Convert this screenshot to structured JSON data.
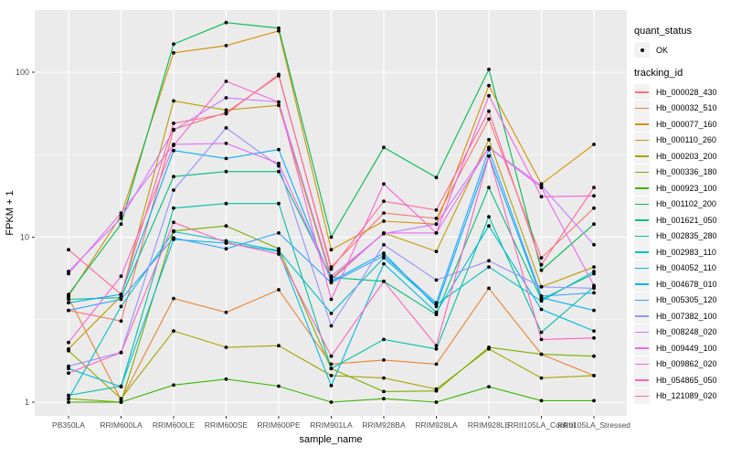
{
  "chart_data": {
    "type": "line",
    "title": "",
    "xlabel": "sample_name",
    "ylabel": "FPKM + 1",
    "y_scale": "log10",
    "y_ticks": [
      1,
      10,
      100
    ],
    "y_minor_ticks": [
      3.162,
      31.62
    ],
    "ylim": [
      0.82,
      240
    ],
    "grid": "on",
    "panel_background": "#EBEBEB",
    "grid_color": "#FFFFFF",
    "point_color": "#000000",
    "legend_position": "right",
    "categories": [
      "PB350LA",
      "RRIM600LA",
      "RRIM600LE",
      "RRIM600SE",
      "RRIM600PE",
      "RRIM901LA",
      "RRIM928BA",
      "RRIM928LA",
      "RRIM928LE",
      "RRII105LA_Control",
      "RRII105LA_Stressed"
    ],
    "series": [
      {
        "name": "Hb_000028_430",
        "color": "#F8766D",
        "values": [
          3.6,
          3.1,
          45,
          57,
          95,
          6.6,
          14,
          13,
          52,
          7.5,
          15
        ]
      },
      {
        "name": "Hb_000032_510",
        "color": "#EA8331",
        "values": [
          4.3,
          1.03,
          4.25,
          3.5,
          4.8,
          1.7,
          1.8,
          1.7,
          4.9,
          1.95,
          1.45
        ]
      },
      {
        "name": "Hb_000077_160",
        "color": "#D89000",
        "values": [
          4.4,
          13.5,
          131,
          145,
          178,
          8.4,
          12.5,
          12,
          83,
          21,
          36.5
        ]
      },
      {
        "name": "Hb_000110_260",
        "color": "#C09B00",
        "values": [
          2.1,
          4.4,
          67,
          59,
          63,
          5.6,
          10.6,
          8.2,
          39,
          5.0,
          6.6
        ]
      },
      {
        "name": "Hb_000203_200",
        "color": "#A3A500",
        "values": [
          2.05,
          1.05,
          2.7,
          2.15,
          2.2,
          1.45,
          1.4,
          1.2,
          2.1,
          1.4,
          1.45
        ]
      },
      {
        "name": "Hb_000336_180",
        "color": "#7CAE00",
        "values": [
          1.05,
          1.0,
          10.9,
          11.7,
          8.5,
          1.6,
          1.16,
          1.17,
          2.15,
          1.95,
          1.9
        ]
      },
      {
        "name": "Hb_000923_100",
        "color": "#39B600",
        "values": [
          1.0,
          1.0,
          1.27,
          1.38,
          1.25,
          1.0,
          1.05,
          1.0,
          1.24,
          1.02,
          1.02
        ]
      },
      {
        "name": "Hb_001102_200",
        "color": "#00BB4E",
        "values": [
          4.5,
          12,
          148,
          200,
          185,
          10,
          35,
          23,
          104,
          6.3,
          12
        ]
      },
      {
        "name": "Hb_001621_050",
        "color": "#00BF7D",
        "values": [
          4.2,
          4.3,
          23.3,
          25,
          25,
          5.7,
          5.4,
          3.4,
          20,
          4.2,
          6.0
        ]
      },
      {
        "name": "Hb_002835_280",
        "color": "#00C1A3",
        "values": [
          1.1,
          1.25,
          15,
          16,
          16,
          1.6,
          2.4,
          2.1,
          13.3,
          2.65,
          5.0
        ]
      },
      {
        "name": "Hb_002983_110",
        "color": "#00BFC4",
        "values": [
          1.05,
          3.8,
          10.8,
          9.5,
          8.3,
          3.45,
          7.5,
          3.9,
          6.6,
          4.1,
          6.2
        ]
      },
      {
        "name": "Hb_004052_110",
        "color": "#00BAE0",
        "values": [
          1.6,
          1.24,
          9.7,
          9.2,
          8.2,
          1.26,
          6.9,
          3.5,
          11.7,
          3.65,
          2.7
        ]
      },
      {
        "name": "Hb_004678_010",
        "color": "#00B0F6",
        "values": [
          4.0,
          4.5,
          33.5,
          30,
          34,
          5.4,
          8.0,
          3.8,
          31,
          4.3,
          3.6
        ]
      },
      {
        "name": "Hb_005305_120",
        "color": "#35A2FF",
        "values": [
          3.6,
          4.2,
          9.9,
          8.5,
          10.6,
          5.3,
          7.7,
          4.0,
          34,
          4.4,
          4.6
        ]
      },
      {
        "name": "Hb_007382_100",
        "color": "#9590FF",
        "values": [
          1.65,
          2.0,
          19.3,
          46,
          27,
          2.9,
          9.0,
          5.5,
          7.2,
          5.0,
          4.9
        ]
      },
      {
        "name": "Hb_008248_020",
        "color": "#C77CFF",
        "values": [
          6.2,
          13,
          44.5,
          70,
          66,
          5.8,
          10.5,
          12,
          35,
          20.5,
          9.0
        ]
      },
      {
        "name": "Hb_009449_100",
        "color": "#E76BF3",
        "values": [
          6.0,
          14,
          36.5,
          37,
          28,
          5.5,
          10.6,
          10.6,
          35,
          20,
          5.1
        ]
      },
      {
        "name": "Hb_009862_020",
        "color": "#FA62DB",
        "values": [
          2.3,
          5.8,
          36,
          88,
          66,
          4.2,
          21,
          10.6,
          72,
          17.6,
          17.8
        ]
      },
      {
        "name": "Hb_054865_050",
        "color": "#FF62BC",
        "values": [
          1.5,
          2.0,
          12.3,
          9.3,
          7.9,
          1.9,
          5.4,
          2.2,
          31,
          2.4,
          2.45
        ]
      },
      {
        "name": "Hb_121089_020",
        "color": "#FF6A98",
        "values": [
          8.4,
          4.5,
          49,
          56,
          97,
          6.4,
          16.5,
          14.6,
          58,
          6.8,
          20
        ]
      }
    ]
  },
  "legend": {
    "quant_status_title": "quant_status",
    "quant_status_items": [
      "OK"
    ],
    "tracking_id_title": "tracking_id"
  }
}
